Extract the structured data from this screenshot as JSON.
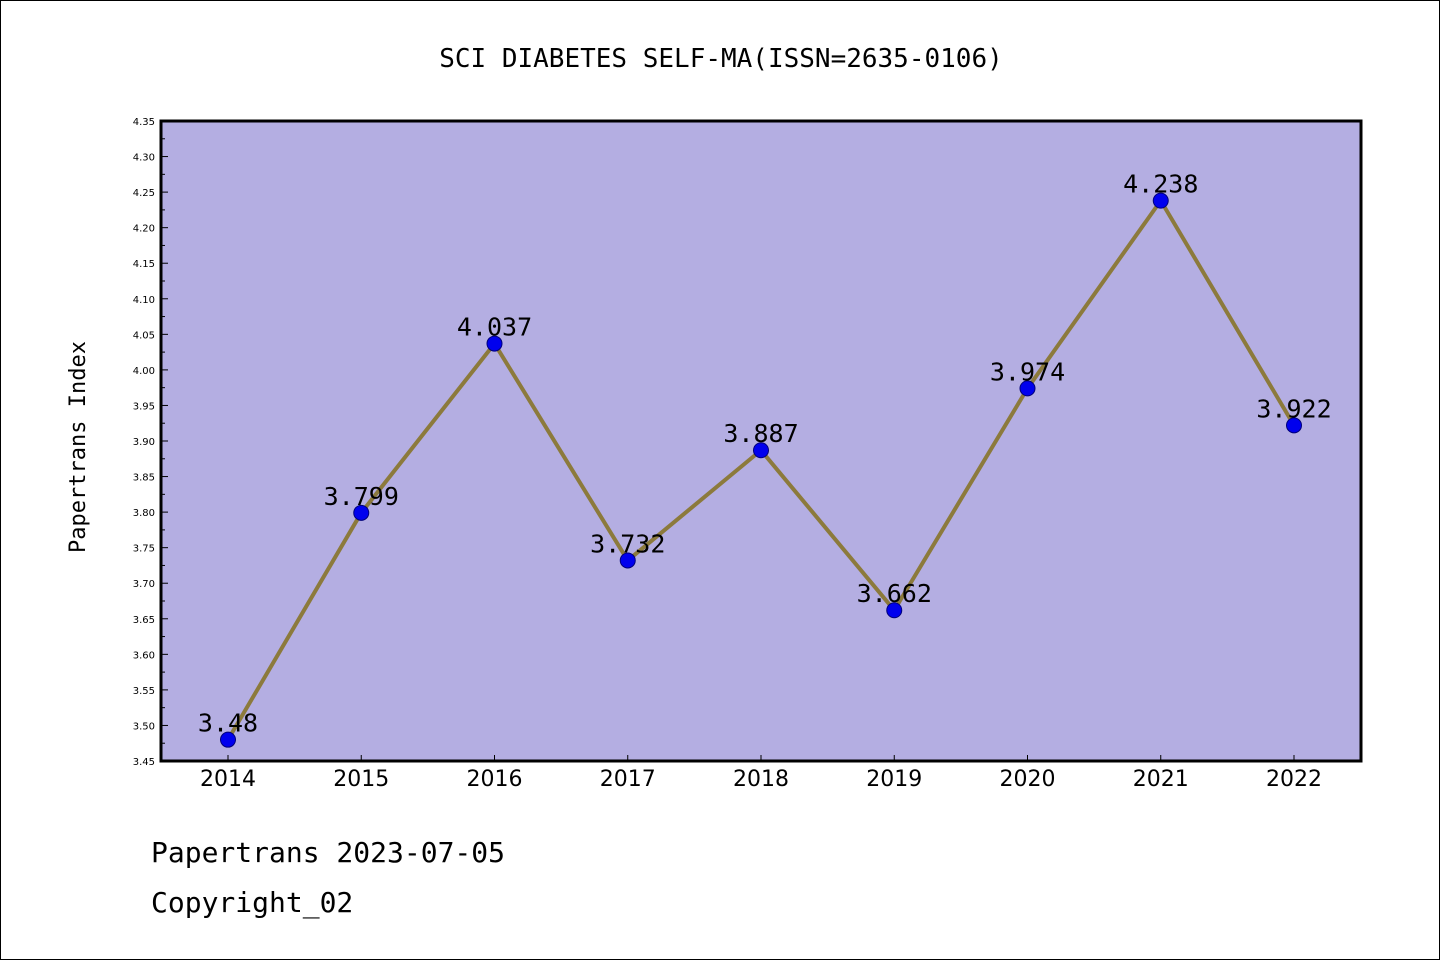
{
  "chart_data": {
    "type": "line",
    "title": "SCI DIABETES SELF-MA(ISSN=2635-0106)",
    "xlabel": "",
    "ylabel": "Papertrans Index",
    "categories": [
      "2014",
      "2015",
      "2016",
      "2017",
      "2018",
      "2019",
      "2020",
      "2021",
      "2022"
    ],
    "values": [
      3.48,
      3.799,
      4.037,
      3.732,
      3.887,
      3.662,
      3.974,
      4.238,
      3.922
    ],
    "data_labels": [
      "3.48",
      "3.799",
      "4.037",
      "3.732",
      "3.887",
      "3.662",
      "3.974",
      "4.238",
      "3.922"
    ],
    "ylim": [
      3.45,
      4.35
    ],
    "y_ticks": [
      "3.45",
      "3.50",
      "3.55",
      "3.60",
      "3.65",
      "3.70",
      "3.75",
      "3.80",
      "3.85",
      "3.90",
      "3.95",
      "4.00",
      "4.05",
      "4.10",
      "4.15",
      "4.20",
      "4.25",
      "4.30",
      "4.35"
    ],
    "grid": false,
    "colors": {
      "plot_background": "#b4aee2",
      "line": "#8c7a3c",
      "marker": "#0000ee",
      "frame": "#000000"
    }
  },
  "footer": {
    "date_text": "Papertrans 2023-07-05",
    "copyright_text": "Copyright_02"
  }
}
